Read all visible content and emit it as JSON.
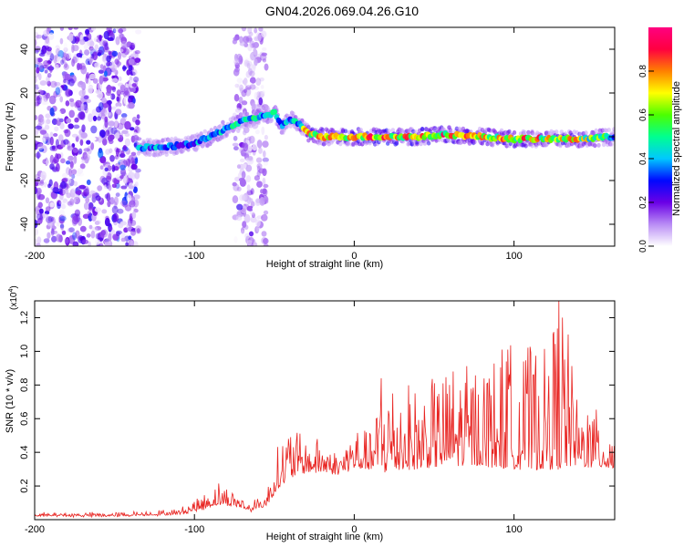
{
  "title": "GN04.2026.069.04.26.G10",
  "chart_data": [
    {
      "type": "heatmap",
      "xlabel": "Height of straight line (km)",
      "ylabel": "Frequency (Hz)",
      "xlim": [
        -200,
        163
      ],
      "ylim": [
        -50,
        50
      ],
      "x_ticks": [
        -200,
        -100,
        0,
        100
      ],
      "y_ticks": [
        -40,
        -20,
        0,
        20,
        40
      ],
      "colorbar": {
        "label": "Normalized spectral amplitude",
        "range": [
          0,
          1
        ],
        "ticks": [
          "0.0",
          "0.2",
          "0.4",
          "0.6",
          "0.8"
        ],
        "colormap": [
          "#ffffff",
          "#b98cf5",
          "#6a00e6",
          "#0008ff",
          "#00c8ff",
          "#00ff90",
          "#4cff00",
          "#ffff00",
          "#ff8000",
          "#ff0040",
          "#ff0080"
        ]
      },
      "ridge": {
        "x": [
          -135,
          -120,
          -110,
          -100,
          -90,
          -80,
          -70,
          -60,
          -50,
          -45,
          -40,
          -35,
          -30,
          -20,
          -10,
          0,
          20,
          40,
          60,
          80,
          100,
          120,
          140,
          163
        ],
        "frequency": [
          -5,
          -5,
          -4,
          -3,
          0,
          4,
          7,
          9,
          11,
          5,
          8,
          6,
          2,
          0,
          0,
          0,
          0,
          0,
          1,
          0,
          -1,
          -1,
          -1,
          0
        ],
        "amplitude": [
          0.45,
          0.45,
          0.4,
          0.45,
          0.5,
          0.55,
          0.55,
          0.55,
          0.55,
          0.5,
          0.5,
          0.6,
          0.85,
          0.85,
          0.9,
          0.95,
          1.0,
          0.95,
          0.95,
          0.85,
          0.9,
          0.9,
          0.85,
          0.55
        ]
      },
      "noise_regions": [
        {
          "x_range": [
            -200,
            -135
          ],
          "amplitude": 0.25
        },
        {
          "x_range": [
            -75,
            -55
          ],
          "amplitude": 0.15
        }
      ]
    },
    {
      "type": "line",
      "xlabel": "Height of straight line (km)",
      "ylabel": "SNR (10 * v/v)",
      "scale_note": "(x10",
      "scale_exp": "4",
      "xlim": [
        -200,
        163
      ],
      "ylim": [
        0,
        1.3
      ],
      "x_ticks": [
        -200,
        -100,
        0,
        100
      ],
      "y_ticks": [
        "0.2",
        "0.4",
        "0.6",
        "0.8",
        "1.0",
        "1.2"
      ],
      "color": "#e8221f",
      "envelope": {
        "x": [
          -200,
          -150,
          -110,
          -95,
          -85,
          -75,
          -65,
          -55,
          -48,
          -40,
          -30,
          -20,
          -10,
          0,
          10,
          20,
          40,
          60,
          80,
          100,
          120,
          130,
          140,
          163
        ],
        "base": [
          0.02,
          0.02,
          0.03,
          0.06,
          0.09,
          0.08,
          0.05,
          0.08,
          0.18,
          0.25,
          0.28,
          0.28,
          0.27,
          0.3,
          0.3,
          0.28,
          0.3,
          0.32,
          0.32,
          0.3,
          0.3,
          0.3,
          0.32,
          0.3
        ],
        "peak": [
          0.04,
          0.04,
          0.06,
          0.14,
          0.22,
          0.16,
          0.1,
          0.16,
          0.42,
          0.55,
          0.45,
          0.48,
          0.38,
          0.55,
          0.5,
          0.85,
          0.75,
          0.85,
          0.9,
          1.0,
          0.95,
          1.3,
          0.65,
          0.6
        ]
      },
      "spikes": [
        {
          "x": 17,
          "y": 0.84
        },
        {
          "x": 38,
          "y": 0.75
        },
        {
          "x": 62,
          "y": 0.88
        },
        {
          "x": 96,
          "y": 1.01
        },
        {
          "x": 106,
          "y": 0.94
        },
        {
          "x": 112,
          "y": 0.86
        },
        {
          "x": 128,
          "y": 1.3
        },
        {
          "x": 146,
          "y": 0.62
        }
      ]
    }
  ]
}
